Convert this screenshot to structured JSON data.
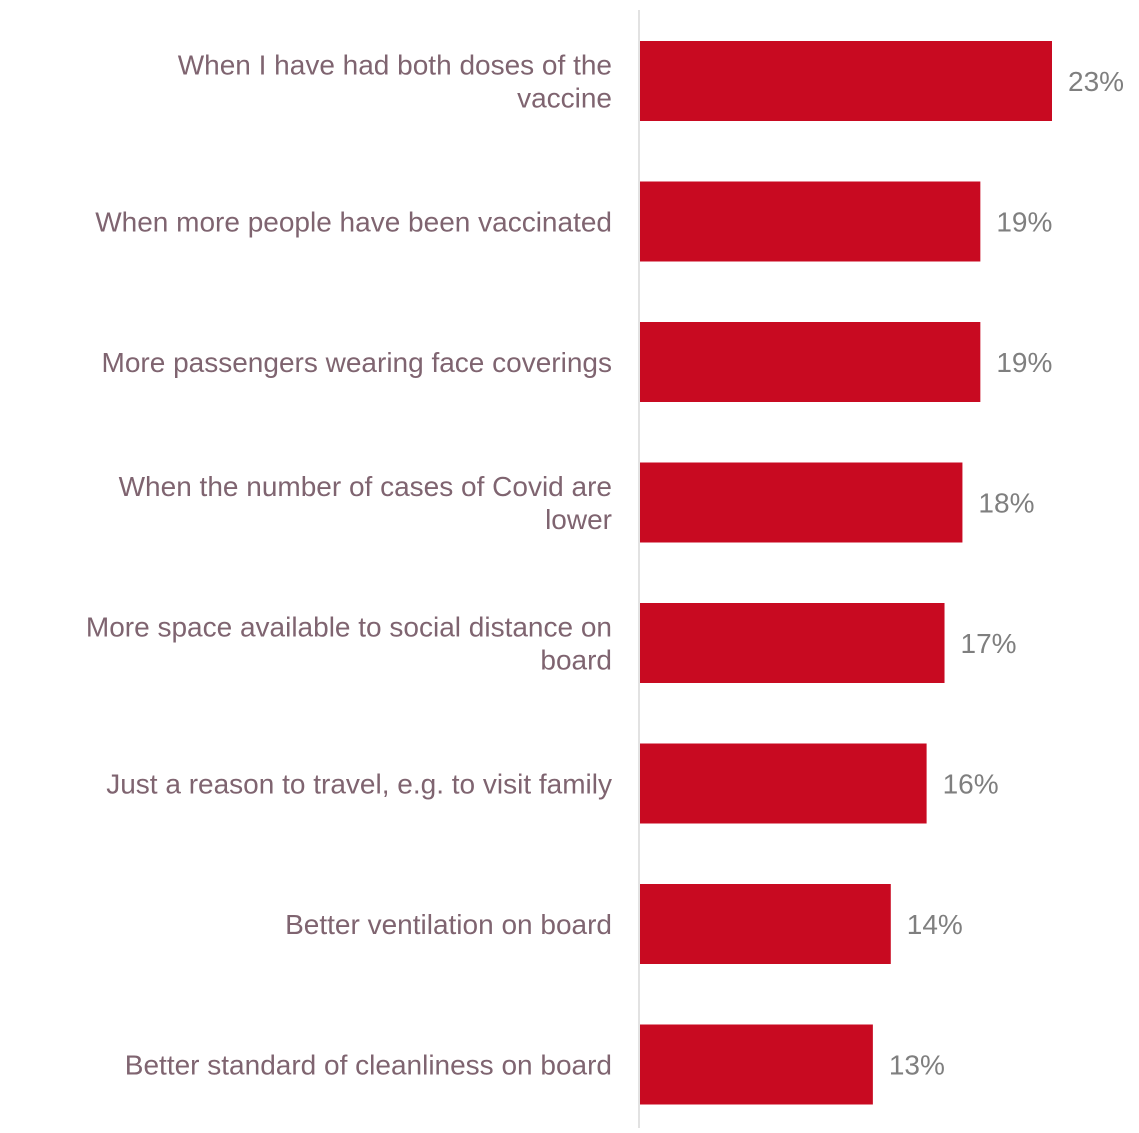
{
  "chart_data": {
    "type": "bar",
    "orientation": "horizontal",
    "categories": [
      [
        "When I have had both doses of the",
        "vaccine"
      ],
      [
        "When more people have been vaccinated"
      ],
      [
        "More passengers wearing face coverings"
      ],
      [
        "When the number of cases of Covid are",
        "lower"
      ],
      [
        "More space available to social distance on",
        "board"
      ],
      [
        "Just a reason to travel, e.g. to visit family"
      ],
      [
        "Better ventilation on board"
      ],
      [
        "Better standard of cleanliness on board"
      ]
    ],
    "values": [
      23,
      19,
      19,
      18,
      17,
      16,
      14,
      13
    ],
    "data_labels": [
      "23%",
      "19%",
      "19%",
      "18%",
      "17%",
      "16%",
      "14%",
      "13%"
    ],
    "value_unit": "%",
    "title": "",
    "xlabel": "",
    "ylabel": "",
    "xlim": [
      0,
      23
    ],
    "grid": false,
    "legend": "none",
    "colors": {
      "bar": "#c80a21",
      "category_label": "#7f6470",
      "data_label": "#7f7f7f",
      "axis_line": "#d9d9d9"
    }
  }
}
